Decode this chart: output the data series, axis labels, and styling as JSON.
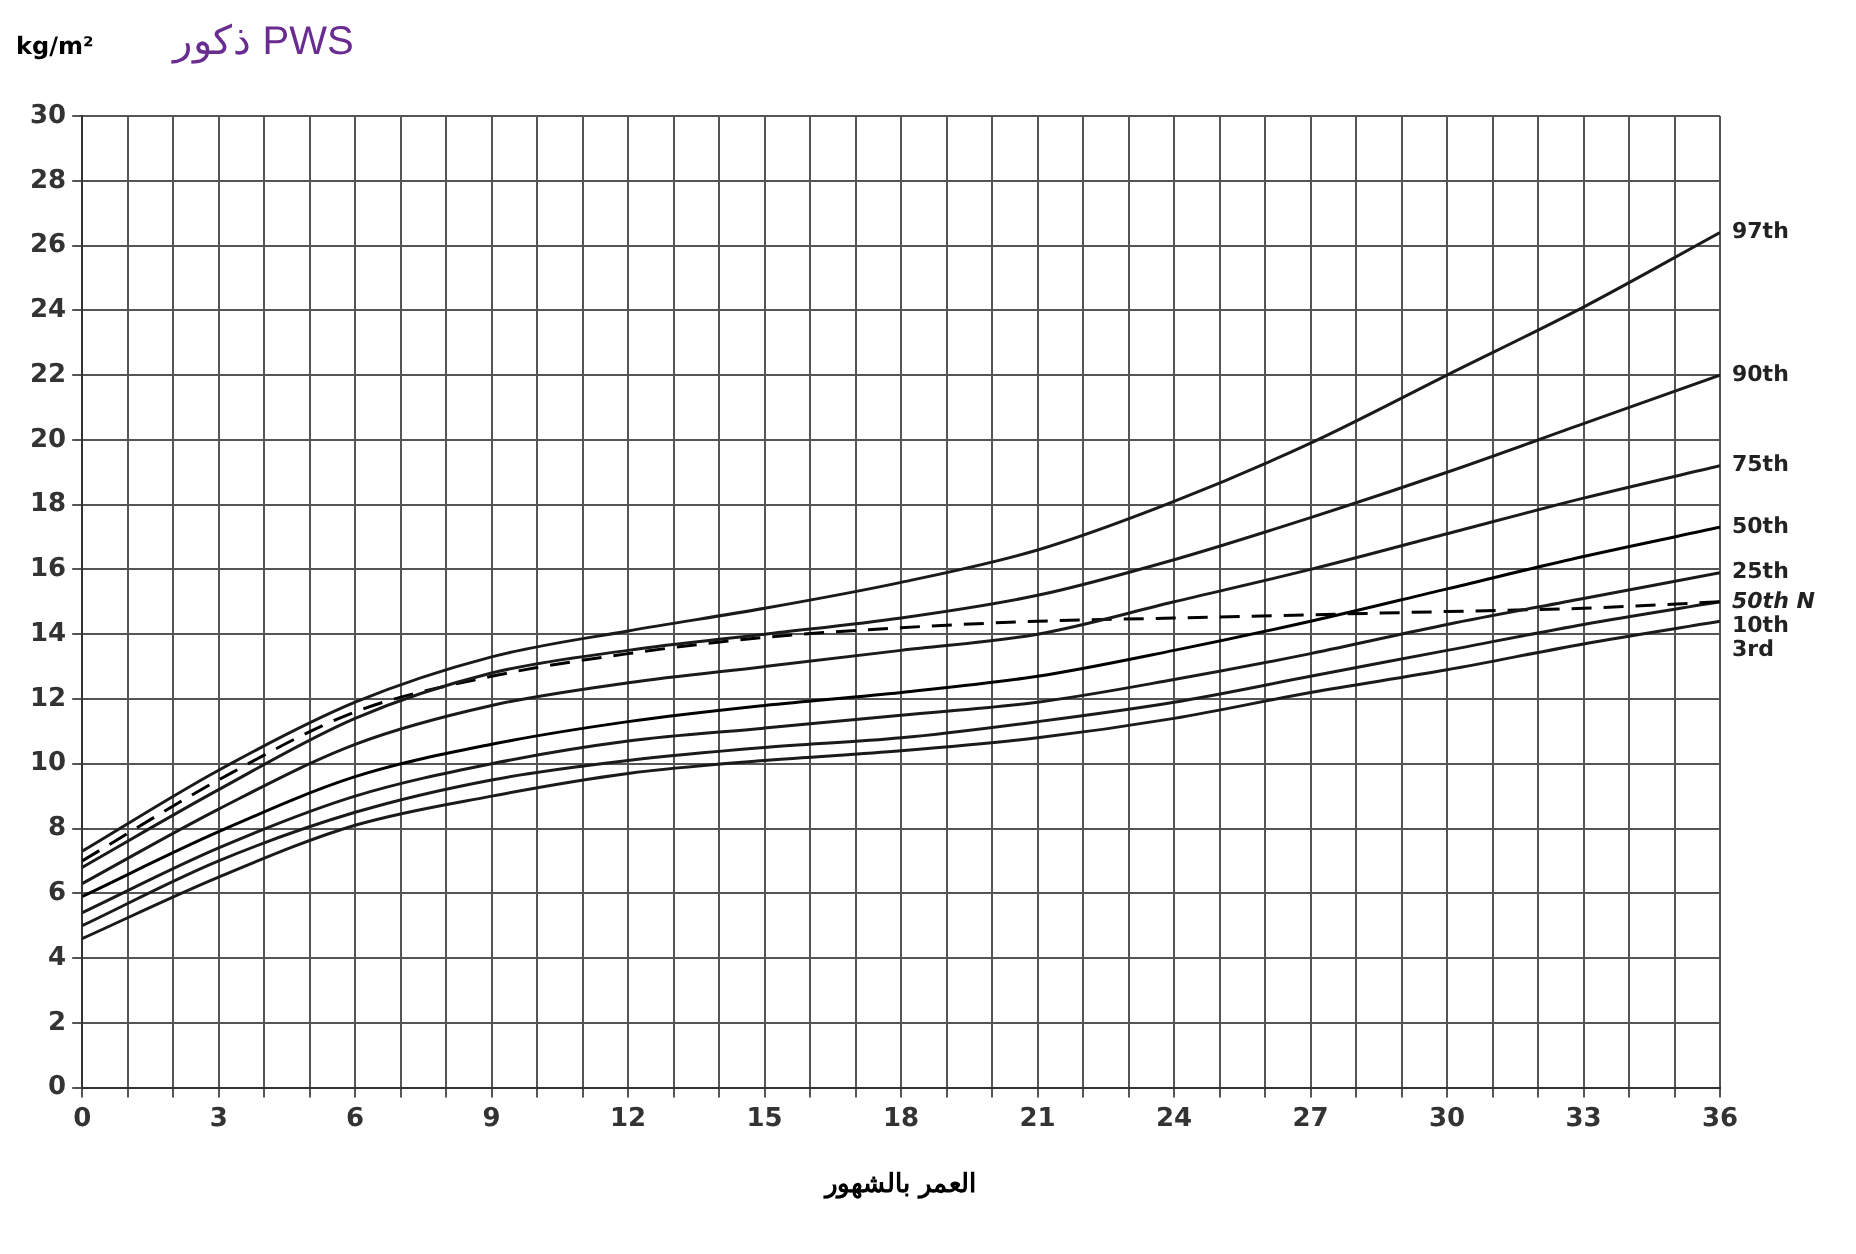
{
  "chart_data": {
    "type": "line",
    "title": "ذكور PWS",
    "ylabel": "kg/m²",
    "xlabel": "العمر بالشهور",
    "x": [
      0,
      3,
      6,
      9,
      12,
      15,
      18,
      21,
      24,
      27,
      30,
      33,
      36
    ],
    "series": [
      {
        "name": "97th",
        "color": "#1a1a1a",
        "values": [
          7.3,
          9.8,
          11.9,
          13.3,
          14.1,
          14.8,
          15.6,
          16.6,
          18.1,
          19.9,
          22.0,
          24.1,
          26.4
        ]
      },
      {
        "name": "90th",
        "color": "#1a1a1a",
        "values": [
          6.8,
          9.2,
          11.4,
          12.8,
          13.5,
          14.0,
          14.5,
          15.2,
          16.3,
          17.6,
          19.0,
          20.5,
          22.0
        ]
      },
      {
        "name": "75th",
        "color": "#1a1a1a",
        "values": [
          6.3,
          8.6,
          10.6,
          11.8,
          12.5,
          13.0,
          13.5,
          14.0,
          15.0,
          16.0,
          17.1,
          18.2,
          19.2
        ]
      },
      {
        "name": "50th",
        "color": "#000000",
        "values": [
          5.9,
          7.9,
          9.6,
          10.6,
          11.3,
          11.8,
          12.2,
          12.7,
          13.5,
          14.4,
          15.4,
          16.4,
          17.3
        ]
      },
      {
        "name": "25th",
        "color": "#1a1a1a",
        "values": [
          5.4,
          7.4,
          9.0,
          10.0,
          10.7,
          11.1,
          11.5,
          11.9,
          12.6,
          13.4,
          14.3,
          15.1,
          15.9
        ]
      },
      {
        "name": "50th N",
        "color": "#000000",
        "line_style": "dashed",
        "values": [
          7.0,
          9.5,
          11.6,
          12.7,
          13.4,
          13.9,
          14.2,
          14.4,
          14.5,
          14.6,
          14.7,
          14.8,
          15.0
        ]
      },
      {
        "name": "10th",
        "color": "#1a1a1a",
        "values": [
          5.0,
          7.0,
          8.5,
          9.5,
          10.1,
          10.5,
          10.8,
          11.3,
          11.9,
          12.7,
          13.5,
          14.3,
          15.0
        ]
      },
      {
        "name": "3rd",
        "color": "#1a1a1a",
        "values": [
          4.6,
          6.5,
          8.1,
          9.0,
          9.7,
          10.1,
          10.4,
          10.8,
          11.4,
          12.2,
          12.9,
          13.7,
          14.4
        ]
      }
    ],
    "xlim": [
      0,
      36
    ],
    "xticks": [
      0,
      {
        "value": 1,
        "label": null
      },
      {
        "value": 2,
        "label": null
      },
      3,
      {
        "value": 4,
        "label": null
      },
      {
        "value": 5,
        "label": null
      },
      6,
      {
        "value": 7,
        "label": null
      },
      {
        "value": 8,
        "label": null
      },
      9,
      {
        "value": 10,
        "label": null
      },
      {
        "value": 11,
        "label": null
      },
      12,
      {
        "value": 13,
        "label": null
      },
      {
        "value": 14,
        "label": null
      },
      15,
      {
        "value": 16,
        "label": null
      },
      {
        "value": 17,
        "label": null
      },
      18,
      {
        "value": 19,
        "label": null
      },
      {
        "value": 20,
        "label": null
      },
      21,
      {
        "value": 22,
        "label": null
      },
      {
        "value": 23,
        "label": null
      },
      24,
      {
        "value": 25,
        "label": null
      },
      {
        "value": 26,
        "label": null
      },
      27,
      {
        "value": 28,
        "label": null
      },
      {
        "value": 29,
        "label": null
      },
      30,
      {
        "value": 31,
        "label": null
      },
      {
        "value": 32,
        "label": null
      },
      33,
      {
        "value": 34,
        "label": null
      },
      {
        "value": 35,
        "label": null
      },
      36
    ],
    "ylim": [
      0,
      30
    ],
    "yticks": [
      0,
      2,
      4,
      6,
      8,
      10,
      12,
      14,
      16,
      18,
      20,
      22,
      24,
      26,
      28,
      30
    ],
    "grid": true,
    "legend": false,
    "marker": "none",
    "line_style": "solid"
  }
}
